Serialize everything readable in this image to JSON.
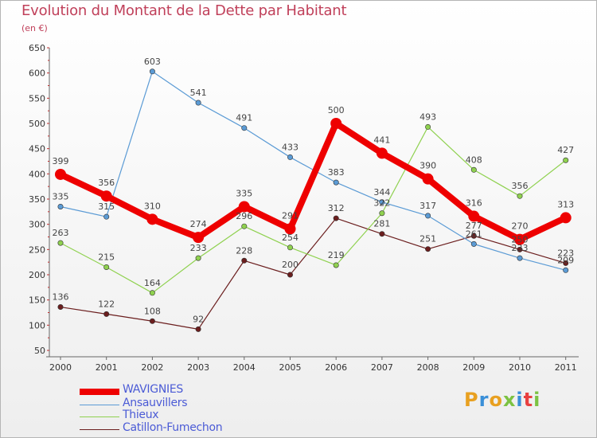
{
  "header": {
    "title": "Evolution du Montant de la Dette par Habitant",
    "subtitle": "(en €)"
  },
  "logo": {
    "text": "Proxiti",
    "colors": [
      "#e8a020",
      "#3a8fd8",
      "#e8a020",
      "#7cc242",
      "#3a8fd8",
      "#e84040",
      "#7cc242"
    ]
  },
  "chart_data": {
    "type": "line",
    "x": [
      "2000",
      "2001",
      "2002",
      "2003",
      "2004",
      "2005",
      "2006",
      "2007",
      "2008",
      "2009",
      "2010",
      "2011"
    ],
    "ylim": [
      50,
      650
    ],
    "yticks": [
      "50",
      "100",
      "150",
      "200",
      "250",
      "300",
      "350",
      "400",
      "450",
      "500",
      "550",
      "600",
      "650"
    ],
    "grid": false,
    "legend_position": "bottom-left",
    "series": [
      {
        "name": "WAVIGNIES",
        "color": "#ee0000",
        "values": [
          399,
          356,
          310,
          274,
          335,
          291,
          500,
          441,
          390,
          316,
          270,
          313
        ],
        "labels": [
          "399",
          "356",
          "310",
          "274",
          "335",
          "291",
          "500",
          "441",
          "390",
          "316",
          "270",
          "313"
        ]
      },
      {
        "name": "Ansauvillers",
        "color": "#5b9bd5",
        "values": [
          335,
          315,
          603,
          541,
          491,
          433,
          383,
          344,
          317,
          261,
          233,
          209
        ],
        "labels": [
          "335",
          "315",
          "603",
          "541",
          "491",
          "433",
          "383",
          "344",
          "317",
          "261",
          "233",
          "209"
        ]
      },
      {
        "name": "Thieux",
        "color": "#8fd14f",
        "values": [
          263,
          215,
          164,
          233,
          296,
          254,
          219,
          322,
          493,
          408,
          356,
          427
        ],
        "labels": [
          "263",
          "215",
          "164",
          "233",
          "296",
          "254",
          "219",
          "322",
          "493",
          "408",
          "356",
          "427"
        ]
      },
      {
        "name": "Catillon-Fumechon",
        "color": "#6b1e1e",
        "values": [
          136,
          122,
          108,
          92,
          228,
          200,
          312,
          281,
          251,
          277,
          250,
          223
        ],
        "labels": [
          "136",
          "122",
          "108",
          "92",
          "228",
          "200",
          "312",
          "281",
          "251",
          "277",
          "250",
          "223"
        ]
      }
    ]
  }
}
